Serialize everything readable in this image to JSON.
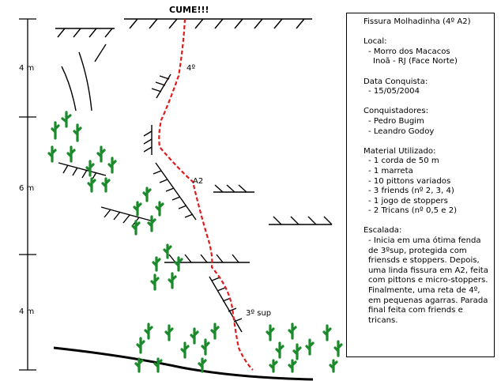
{
  "route": {
    "summit_label": "CUME!!!",
    "grade_labels": [
      "4º",
      "A2",
      "3º sup"
    ],
    "scale_labels": [
      "4 m",
      "6 m",
      "4 m"
    ]
  },
  "info": {
    "title": "Fissura Molhadinha (4º A2)",
    "local_label": "Local:",
    "local_lines": [
      "- Morro dos Macacos",
      "Inoã - RJ (Face Norte)"
    ],
    "date_label": "Data Conquista:",
    "date_value": "- 15/05/2004",
    "conquerors_label": "Conquistadores:",
    "conquerors": [
      "- Pedro Bugim",
      "- Leandro Godoy"
    ],
    "material_label": "Material Utilizado:",
    "materials": [
      "- 1 corda de 50 m",
      "- 1 marreta",
      "- 10 pittons variados",
      "- 3 friends (nº 2, 3, 4)",
      "- 1 jogo de stoppers",
      "- 2 Tricans (nº 0,5 e 2)"
    ],
    "climb_label": "Escalada:",
    "climb_text": "-  Inicia  em uma ótima fenda de 3ºsup, protegida com friensds e stoppers. Depois, uma linda fissura em A2, feita com pittons e micro-stoppers. Finalmente, uma reta de 4º, em pequenas agarras. Parada final feita com friends e tricans."
  },
  "colors": {
    "route": "#e01b1b",
    "vegetation": "#1a8a2a",
    "lines": "#000000"
  }
}
